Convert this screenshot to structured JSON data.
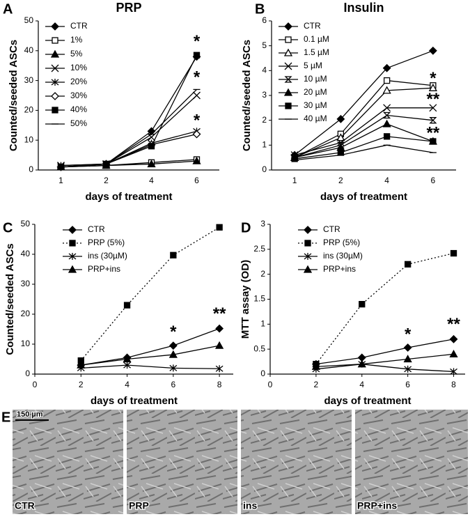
{
  "chart_data": [
    {
      "type": "line",
      "panel": "A",
      "title": "PRP",
      "xlabel": "days of treatment",
      "ylabel": "Counted/seeded ASCs",
      "categories": [
        "1",
        "2",
        "4",
        "6"
      ],
      "ylim": [
        0,
        50
      ],
      "yticks": [
        0,
        10,
        20,
        30,
        40,
        50
      ],
      "legend": "upper left",
      "series": [
        {
          "name": "CTR",
          "marker": "diamond",
          "color": "#000000",
          "values": [
            1,
            2,
            13,
            38
          ]
        },
        {
          "name": "1%",
          "marker": "square-open",
          "color": "#000000",
          "values": [
            1,
            1.5,
            2.5,
            3.5
          ]
        },
        {
          "name": "5%",
          "marker": "triangle",
          "color": "#000000",
          "values": [
            1,
            1.5,
            2,
            3
          ]
        },
        {
          "name": "10%",
          "marker": "x",
          "color": "#000000",
          "values": [
            1.5,
            2,
            11,
            25
          ]
        },
        {
          "name": "20%",
          "marker": "star",
          "color": "#000000",
          "values": [
            1.5,
            2,
            9,
            13
          ]
        },
        {
          "name": "30%",
          "marker": "diamond-open",
          "color": "#000000",
          "values": [
            1,
            2,
            8.5,
            12
          ]
        },
        {
          "name": "40%",
          "marker": "square",
          "color": "#000000",
          "values": [
            1,
            2,
            8,
            38.5
          ]
        },
        {
          "name": "50%",
          "marker": "dash",
          "color": "#000000",
          "values": [
            1,
            2,
            12,
            27
          ]
        }
      ],
      "annotations": [
        {
          "text": "*",
          "x": "6",
          "y": 44
        },
        {
          "text": "*",
          "x": "6",
          "y": 32
        },
        {
          "text": "*",
          "x": "6",
          "y": 17.5
        }
      ]
    },
    {
      "type": "line",
      "panel": "B",
      "title": "Insulin",
      "xlabel": "days of treatment",
      "ylabel": "Counted/seeded ASCs",
      "categories": [
        "1",
        "2",
        "4",
        "6"
      ],
      "ylim": [
        0,
        6
      ],
      "yticks": [
        0,
        1,
        2,
        3,
        4,
        5,
        6
      ],
      "legend": "upper left",
      "series": [
        {
          "name": "CTR",
          "marker": "diamond",
          "color": "#000000",
          "values": [
            0.6,
            2.05,
            4.1,
            4.8
          ]
        },
        {
          "name": "0.1 µM",
          "marker": "square-open",
          "color": "#000000",
          "values": [
            0.5,
            1.45,
            3.6,
            3.4
          ]
        },
        {
          "name": "1.5 µM",
          "marker": "triangle-open",
          "color": "#000000",
          "values": [
            0.5,
            1.3,
            3.2,
            3.3
          ]
        },
        {
          "name": "5 µM",
          "marker": "x",
          "color": "#000000",
          "values": [
            0.6,
            1.1,
            2.5,
            2.5
          ]
        },
        {
          "name": "10 µM",
          "marker": "hourglass",
          "color": "#000000",
          "values": [
            0.5,
            1.0,
            2.2,
            2.0
          ]
        },
        {
          "name": "20 µM",
          "marker": "triangle",
          "color": "#000000",
          "values": [
            0.5,
            0.9,
            1.85,
            1.15
          ]
        },
        {
          "name": "30 µM",
          "marker": "square",
          "color": "#000000",
          "values": [
            0.45,
            0.7,
            1.35,
            1.15
          ]
        },
        {
          "name": "40 µM",
          "marker": "dash",
          "color": "#000000",
          "values": [
            0.4,
            0.6,
            1.0,
            0.7
          ]
        }
      ],
      "annotations": [
        {
          "text": "*",
          "x": "6",
          "y": 3.8
        },
        {
          "text": "**",
          "x": "6",
          "y": 2.95
        },
        {
          "text": "**",
          "x": "6",
          "y": 1.6
        }
      ]
    },
    {
      "type": "line",
      "panel": "C",
      "xlabel": "days of treatment",
      "ylabel": "Counted/seeded ASCs",
      "x": [
        2,
        4,
        6,
        8
      ],
      "xlim": [
        0,
        8.6
      ],
      "xticks": [
        0,
        2,
        4,
        6,
        8
      ],
      "ylim": [
        0,
        50
      ],
      "yticks": [
        0,
        10,
        20,
        30,
        40,
        50
      ],
      "legend": "upper left",
      "series": [
        {
          "name": "CTR",
          "marker": "diamond",
          "color": "#000000",
          "values": [
            3,
            5.5,
            9.5,
            15.2
          ]
        },
        {
          "name": "PRP (5%)",
          "marker": "square",
          "dashed": true,
          "color": "#000000",
          "values": [
            4.5,
            23,
            39.7,
            49
          ]
        },
        {
          "name": "ins (30µM)",
          "marker": "star",
          "color": "#000000",
          "values": [
            2,
            3,
            2,
            1.8
          ]
        },
        {
          "name": "PRP+ins",
          "marker": "triangle",
          "color": "#000000",
          "values": [
            3,
            5,
            6.5,
            9.5
          ]
        }
      ],
      "annotations": [
        {
          "text": "*",
          "x": 6,
          "y": 15
        },
        {
          "text": "**",
          "x": 8,
          "y": 21
        }
      ]
    },
    {
      "type": "line",
      "panel": "D",
      "xlabel": "days of treatment",
      "ylabel": "MTT assay (OD)",
      "x": [
        2,
        4,
        6,
        8
      ],
      "xlim": [
        0,
        8.5
      ],
      "xticks": [
        0,
        2,
        4,
        6,
        8
      ],
      "ylim": [
        0,
        3
      ],
      "yticks": [
        0,
        0.5,
        1,
        1.5,
        2,
        2.5,
        3
      ],
      "legend": "upper left",
      "series": [
        {
          "name": "CTR",
          "marker": "diamond",
          "color": "#000000",
          "values": [
            0.2,
            0.33,
            0.53,
            0.7
          ]
        },
        {
          "name": "PRP (5%)",
          "marker": "square",
          "dashed": true,
          "color": "#000000",
          "values": [
            0.2,
            1.4,
            2.2,
            2.42
          ]
        },
        {
          "name": "ins (30µM)",
          "marker": "star",
          "color": "#000000",
          "values": [
            0.1,
            0.2,
            0.1,
            0.05
          ]
        },
        {
          "name": "PRP+ins",
          "marker": "triangle",
          "color": "#000000",
          "values": [
            0.15,
            0.2,
            0.3,
            0.4
          ]
        }
      ],
      "annotations": [
        {
          "text": "*",
          "x": 6,
          "y": 0.85
        },
        {
          "text": "**",
          "x": 8,
          "y": 1.05
        }
      ]
    }
  ],
  "micrographs": {
    "panel": "E",
    "scale_bar": "150 µm",
    "labels": [
      "CTR",
      "PRP",
      "ins",
      "PRP+ins"
    ]
  }
}
